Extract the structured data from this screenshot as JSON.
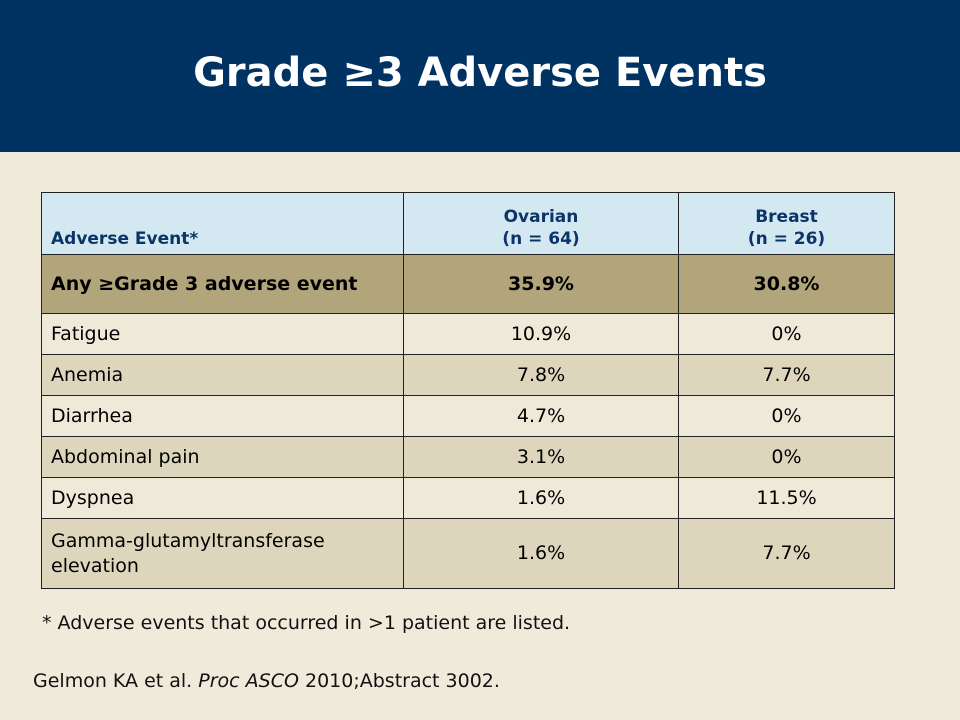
{
  "slide": {
    "title": "Grade ≥3 Adverse Events"
  },
  "table": {
    "headers": {
      "event": "Adverse Event*",
      "ovarian_line1": "Ovarian",
      "ovarian_line2": "(n = 64)",
      "breast_line1": "Breast",
      "breast_line2": "(n = 26)"
    },
    "summary_row": {
      "event": "Any ≥Grade 3 adverse event",
      "ovarian": "35.9%",
      "breast": "30.8%"
    },
    "rows": [
      {
        "event": "Fatigue",
        "ovarian": "10.9%",
        "breast": "0%"
      },
      {
        "event": "Anemia",
        "ovarian": "7.8%",
        "breast": "7.7%"
      },
      {
        "event": "Diarrhea",
        "ovarian": "4.7%",
        "breast": "0%"
      },
      {
        "event": "Abdominal pain",
        "ovarian": "3.1%",
        "breast": "0%"
      },
      {
        "event": "Dyspnea",
        "ovarian": "1.6%",
        "breast": "11.5%"
      },
      {
        "event": "Gamma-glutamyltransferase elevation",
        "ovarian": "1.6%",
        "breast": "7.7%"
      }
    ]
  },
  "footnote": "* Adverse events that occurred in >1 patient are listed.",
  "citation": {
    "authors": "Gelmon KA et al.",
    "journal": "Proc ASCO",
    "rest": "2010;Abstract 3002."
  }
}
